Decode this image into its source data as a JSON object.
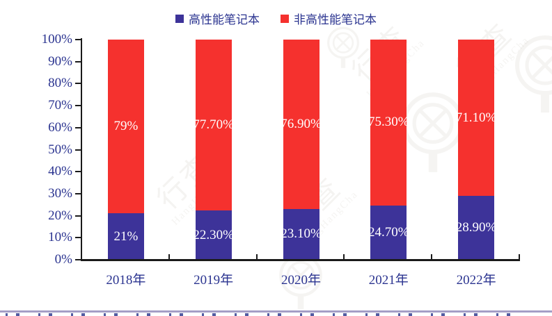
{
  "legend": {
    "items": [
      {
        "label": "高性能笔记本",
        "color": "#3D3399"
      },
      {
        "label": "非高性能笔记本",
        "color": "#F5312E"
      }
    ]
  },
  "chart_data": {
    "type": "bar",
    "stacked": true,
    "categories": [
      "2018年",
      "2019年",
      "2020年",
      "2021年",
      "2022年"
    ],
    "series": [
      {
        "name": "高性能笔记本",
        "color": "#3D3399",
        "values": [
          21,
          22.3,
          23.1,
          24.7,
          28.9
        ],
        "labels": [
          "21%",
          "22.30%",
          "23.10%",
          "24.70%",
          "28.90%"
        ]
      },
      {
        "name": "非高性能笔记本",
        "color": "#F5312E",
        "values": [
          79,
          77.7,
          76.9,
          75.3,
          71.1
        ],
        "labels": [
          "79%",
          "77.70%",
          "76.90%",
          "75.30%",
          "71.10%"
        ]
      }
    ],
    "ylim": [
      0,
      100
    ],
    "ytick_step": 10,
    "yticks": [
      "0%",
      "10%",
      "20%",
      "30%",
      "40%",
      "50%",
      "60%",
      "70%",
      "80%",
      "90%",
      "100%"
    ],
    "grid": false,
    "legend_position": "top",
    "bar_label_color": "#ffffff",
    "axis_color": "#1a1a1a",
    "tick_label_color": "#2B3490"
  },
  "watermark": {
    "text": "行查",
    "subtext": "HangHangCha"
  },
  "footer": {
    "divider_color": "#A49EC6"
  }
}
